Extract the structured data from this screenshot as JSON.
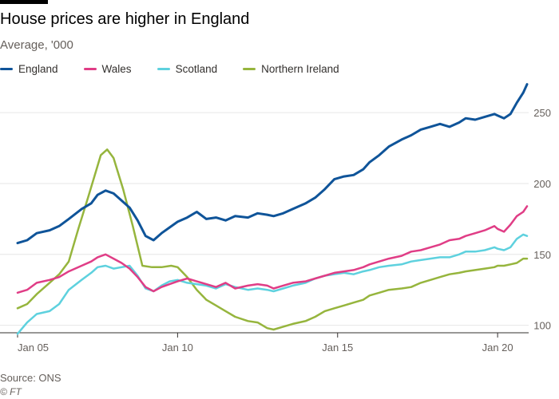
{
  "chart_data": {
    "type": "line",
    "title": "House prices are higher in England",
    "subtitle": "Average, '000",
    "source": "Source: ONS",
    "copyright": "© FT",
    "x_ticks": [
      "Jan 05",
      "Jan 10",
      "Jan 15",
      "Jan 20"
    ],
    "x_range": [
      2005.0,
      2020.92
    ],
    "y_ticks": [
      100,
      150,
      200,
      250
    ],
    "ylim": [
      97,
      272
    ],
    "grid": true,
    "legend_position": "top-left",
    "series": [
      {
        "name": "England",
        "color": "#0f5499",
        "points": [
          [
            2005.0,
            158
          ],
          [
            2005.3,
            160
          ],
          [
            2005.6,
            165
          ],
          [
            2006.0,
            167
          ],
          [
            2006.3,
            170
          ],
          [
            2006.6,
            175
          ],
          [
            2007.0,
            182
          ],
          [
            2007.3,
            186
          ],
          [
            2007.5,
            192
          ],
          [
            2007.75,
            195
          ],
          [
            2008.0,
            193
          ],
          [
            2008.25,
            188
          ],
          [
            2008.5,
            183
          ],
          [
            2008.75,
            174
          ],
          [
            2009.0,
            163
          ],
          [
            2009.25,
            160
          ],
          [
            2009.5,
            165
          ],
          [
            2009.75,
            169
          ],
          [
            2010.0,
            173
          ],
          [
            2010.3,
            176
          ],
          [
            2010.6,
            180
          ],
          [
            2010.9,
            175
          ],
          [
            2011.2,
            176
          ],
          [
            2011.5,
            174
          ],
          [
            2011.8,
            177
          ],
          [
            2012.2,
            176
          ],
          [
            2012.5,
            179
          ],
          [
            2012.8,
            178
          ],
          [
            2013.0,
            177
          ],
          [
            2013.3,
            179
          ],
          [
            2013.6,
            182
          ],
          [
            2014.0,
            186
          ],
          [
            2014.3,
            190
          ],
          [
            2014.6,
            196
          ],
          [
            2014.9,
            203
          ],
          [
            2015.2,
            205
          ],
          [
            2015.5,
            206
          ],
          [
            2015.8,
            210
          ],
          [
            2016.0,
            215
          ],
          [
            2016.3,
            220
          ],
          [
            2016.6,
            226
          ],
          [
            2017.0,
            231
          ],
          [
            2017.3,
            234
          ],
          [
            2017.6,
            238
          ],
          [
            2017.9,
            240
          ],
          [
            2018.2,
            242
          ],
          [
            2018.5,
            240
          ],
          [
            2018.8,
            243
          ],
          [
            2019.0,
            246
          ],
          [
            2019.3,
            245
          ],
          [
            2019.6,
            247
          ],
          [
            2019.9,
            249
          ],
          [
            2020.0,
            248
          ],
          [
            2020.2,
            246
          ],
          [
            2020.4,
            249
          ],
          [
            2020.6,
            257
          ],
          [
            2020.8,
            264
          ],
          [
            2020.92,
            270
          ]
        ]
      },
      {
        "name": "Wales",
        "color": "#e03d86",
        "points": [
          [
            2005.0,
            123
          ],
          [
            2005.3,
            125
          ],
          [
            2005.6,
            130
          ],
          [
            2006.0,
            132
          ],
          [
            2006.3,
            134
          ],
          [
            2006.6,
            138
          ],
          [
            2007.0,
            142
          ],
          [
            2007.3,
            145
          ],
          [
            2007.5,
            148
          ],
          [
            2007.75,
            150
          ],
          [
            2008.0,
            147
          ],
          [
            2008.25,
            144
          ],
          [
            2008.5,
            140
          ],
          [
            2008.75,
            134
          ],
          [
            2009.0,
            127
          ],
          [
            2009.25,
            124
          ],
          [
            2009.5,
            127
          ],
          [
            2009.75,
            129
          ],
          [
            2010.0,
            131
          ],
          [
            2010.3,
            133
          ],
          [
            2010.6,
            131
          ],
          [
            2010.9,
            129
          ],
          [
            2011.2,
            127
          ],
          [
            2011.5,
            130
          ],
          [
            2011.8,
            126
          ],
          [
            2012.2,
            128
          ],
          [
            2012.5,
            129
          ],
          [
            2012.8,
            128
          ],
          [
            2013.0,
            126
          ],
          [
            2013.3,
            128
          ],
          [
            2013.6,
            130
          ],
          [
            2014.0,
            131
          ],
          [
            2014.3,
            133
          ],
          [
            2014.6,
            135
          ],
          [
            2014.9,
            137
          ],
          [
            2015.2,
            138
          ],
          [
            2015.5,
            139
          ],
          [
            2015.8,
            141
          ],
          [
            2016.0,
            143
          ],
          [
            2016.3,
            145
          ],
          [
            2016.6,
            147
          ],
          [
            2017.0,
            149
          ],
          [
            2017.3,
            152
          ],
          [
            2017.6,
            153
          ],
          [
            2017.9,
            155
          ],
          [
            2018.2,
            157
          ],
          [
            2018.5,
            160
          ],
          [
            2018.8,
            161
          ],
          [
            2019.0,
            163
          ],
          [
            2019.3,
            165
          ],
          [
            2019.6,
            167
          ],
          [
            2019.9,
            170
          ],
          [
            2020.0,
            168
          ],
          [
            2020.2,
            166
          ],
          [
            2020.4,
            171
          ],
          [
            2020.6,
            177
          ],
          [
            2020.8,
            180
          ],
          [
            2020.92,
            184
          ]
        ]
      },
      {
        "name": "Scotland",
        "color": "#5ed1de",
        "points": [
          [
            2005.0,
            94
          ],
          [
            2005.3,
            102
          ],
          [
            2005.6,
            108
          ],
          [
            2006.0,
            110
          ],
          [
            2006.3,
            115
          ],
          [
            2006.6,
            125
          ],
          [
            2007.0,
            132
          ],
          [
            2007.3,
            137
          ],
          [
            2007.5,
            141
          ],
          [
            2007.75,
            142
          ],
          [
            2008.0,
            140
          ],
          [
            2008.25,
            141
          ],
          [
            2008.5,
            142
          ],
          [
            2008.75,
            135
          ],
          [
            2009.0,
            126
          ],
          [
            2009.25,
            124
          ],
          [
            2009.5,
            128
          ],
          [
            2009.75,
            131
          ],
          [
            2010.0,
            132
          ],
          [
            2010.3,
            130
          ],
          [
            2010.6,
            129
          ],
          [
            2010.9,
            128
          ],
          [
            2011.2,
            126
          ],
          [
            2011.5,
            129
          ],
          [
            2011.8,
            127
          ],
          [
            2012.2,
            125
          ],
          [
            2012.5,
            126
          ],
          [
            2012.8,
            125
          ],
          [
            2013.0,
            124
          ],
          [
            2013.3,
            126
          ],
          [
            2013.6,
            128
          ],
          [
            2014.0,
            130
          ],
          [
            2014.3,
            133
          ],
          [
            2014.6,
            135
          ],
          [
            2014.9,
            136
          ],
          [
            2015.2,
            137
          ],
          [
            2015.5,
            136
          ],
          [
            2015.8,
            138
          ],
          [
            2016.0,
            139
          ],
          [
            2016.3,
            141
          ],
          [
            2016.6,
            142
          ],
          [
            2017.0,
            143
          ],
          [
            2017.3,
            145
          ],
          [
            2017.6,
            146
          ],
          [
            2017.9,
            147
          ],
          [
            2018.2,
            148
          ],
          [
            2018.5,
            148
          ],
          [
            2018.8,
            150
          ],
          [
            2019.0,
            152
          ],
          [
            2019.3,
            152
          ],
          [
            2019.6,
            153
          ],
          [
            2019.9,
            155
          ],
          [
            2020.0,
            154
          ],
          [
            2020.2,
            153
          ],
          [
            2020.4,
            155
          ],
          [
            2020.6,
            161
          ],
          [
            2020.8,
            164
          ],
          [
            2020.92,
            163
          ]
        ]
      },
      {
        "name": "Northern Ireland",
        "color": "#96b53d",
        "points": [
          [
            2005.0,
            112
          ],
          [
            2005.3,
            115
          ],
          [
            2005.6,
            122
          ],
          [
            2006.0,
            130
          ],
          [
            2006.3,
            136
          ],
          [
            2006.6,
            145
          ],
          [
            2006.9,
            168
          ],
          [
            2007.2,
            190
          ],
          [
            2007.4,
            205
          ],
          [
            2007.6,
            220
          ],
          [
            2007.8,
            224
          ],
          [
            2008.0,
            218
          ],
          [
            2008.3,
            196
          ],
          [
            2008.6,
            170
          ],
          [
            2008.9,
            142
          ],
          [
            2009.2,
            141
          ],
          [
            2009.5,
            141
          ],
          [
            2009.8,
            142
          ],
          [
            2010.0,
            141
          ],
          [
            2010.3,
            134
          ],
          [
            2010.6,
            125
          ],
          [
            2010.9,
            118
          ],
          [
            2011.2,
            114
          ],
          [
            2011.5,
            110
          ],
          [
            2011.8,
            106
          ],
          [
            2012.2,
            103
          ],
          [
            2012.5,
            102
          ],
          [
            2012.8,
            98
          ],
          [
            2013.0,
            97
          ],
          [
            2013.3,
            99
          ],
          [
            2013.6,
            101
          ],
          [
            2014.0,
            103
          ],
          [
            2014.3,
            106
          ],
          [
            2014.6,
            110
          ],
          [
            2014.9,
            112
          ],
          [
            2015.2,
            114
          ],
          [
            2015.5,
            116
          ],
          [
            2015.8,
            118
          ],
          [
            2016.0,
            121
          ],
          [
            2016.3,
            123
          ],
          [
            2016.6,
            125
          ],
          [
            2017.0,
            126
          ],
          [
            2017.3,
            127
          ],
          [
            2017.6,
            130
          ],
          [
            2017.9,
            132
          ],
          [
            2018.2,
            134
          ],
          [
            2018.5,
            136
          ],
          [
            2018.8,
            137
          ],
          [
            2019.0,
            138
          ],
          [
            2019.3,
            139
          ],
          [
            2019.6,
            140
          ],
          [
            2019.9,
            141
          ],
          [
            2020.0,
            142
          ],
          [
            2020.2,
            142
          ],
          [
            2020.4,
            143
          ],
          [
            2020.6,
            144
          ],
          [
            2020.8,
            147
          ],
          [
            2020.92,
            147
          ]
        ]
      }
    ]
  }
}
